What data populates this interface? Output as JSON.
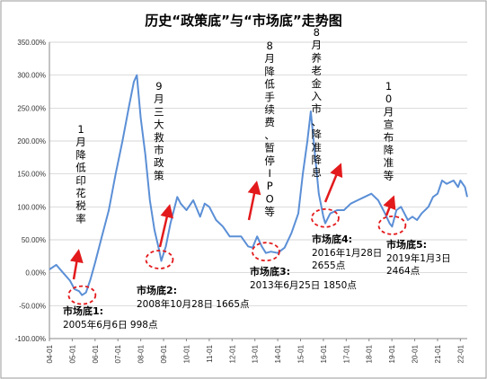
{
  "colors": {
    "line": "#5b8fd6",
    "annotation": "#e31a1c",
    "grid": "#c8c8c8",
    "frame": "#9a9a9a"
  },
  "chart_data": {
    "type": "line",
    "title": "历史“政策底”与“市场底”走势图",
    "xlabel": "",
    "ylabel": "",
    "ylim": [
      -100,
      350
    ],
    "yticks": [
      "-100.00%",
      "-50.00%",
      "0.00%",
      "50.00%",
      "100.00%",
      "150.00%",
      "200.00%",
      "250.00%",
      "300.00%",
      "350.00%"
    ],
    "xticks": [
      "04-01",
      "05-01",
      "06-01",
      "07-01",
      "08-01",
      "09-01",
      "10-01",
      "11-01",
      "12-01",
      "13-01",
      "14-01",
      "15-01",
      "16-01",
      "17-01",
      "18-01",
      "19-01",
      "20-01",
      "21-01",
      "22-01"
    ],
    "grid": "horizontal",
    "series": [
      {
        "x": [
          2004.0,
          2004.3,
          2004.6,
          2004.9,
          2005.1,
          2005.3,
          2005.43,
          2005.6,
          2005.8,
          2006.0,
          2006.3,
          2006.6,
          2006.9,
          2007.2,
          2007.5,
          2007.7,
          2007.83,
          2008.0,
          2008.2,
          2008.4,
          2008.6,
          2008.8,
          2008.9,
          2009.1,
          2009.3,
          2009.6,
          2009.75,
          2010.0,
          2010.3,
          2010.6,
          2010.8,
          2011.0,
          2011.3,
          2011.6,
          2011.9,
          2012.1,
          2012.4,
          2012.7,
          2012.9,
          2013.1,
          2013.3,
          2013.48,
          2013.7,
          2014.0,
          2014.3,
          2014.6,
          2014.9,
          2015.1,
          2015.3,
          2015.45,
          2015.6,
          2015.8,
          2016.0,
          2016.08,
          2016.3,
          2016.6,
          2016.9,
          2017.2,
          2017.5,
          2017.8,
          2018.1,
          2018.4,
          2018.7,
          2018.9,
          2019.01,
          2019.2,
          2019.4,
          2019.7,
          2019.9,
          2020.1,
          2020.3,
          2020.6,
          2020.8,
          2021.0,
          2021.2,
          2021.4,
          2021.7,
          2021.9,
          2022.0,
          2022.2,
          2022.3
        ],
        "values": [
          5,
          12,
          0,
          -12,
          -25,
          -28,
          -34,
          -30,
          -10,
          15,
          55,
          95,
          150,
          200,
          255,
          290,
          300,
          235,
          180,
          110,
          65,
          35,
          18,
          40,
          75,
          115,
          105,
          95,
          110,
          85,
          105,
          100,
          80,
          70,
          55,
          55,
          55,
          40,
          38,
          55,
          40,
          30,
          32,
          30,
          38,
          60,
          90,
          150,
          200,
          245,
          190,
          120,
          85,
          75,
          90,
          95,
          95,
          105,
          110,
          115,
          120,
          110,
          90,
          75,
          70,
          95,
          100,
          80,
          85,
          80,
          90,
          100,
          115,
          120,
          140,
          135,
          140,
          130,
          140,
          130,
          115
        ]
      }
    ]
  },
  "annotations": {
    "policy": [
      {
        "text": "1月降低印花税率",
        "x": 2005.3
      },
      {
        "text": "9月三大救市政策",
        "x": 2008.72
      },
      {
        "text": "8月降低手续费、暂停IPO等",
        "x": 2013.57
      },
      {
        "text": "8月养老金入市、降准降息",
        "x": 2015.62
      },
      {
        "text": "10月宣布降准等",
        "x": 2018.78
      }
    ],
    "market": [
      {
        "name": "市场底1:",
        "detail": "2005年6月6日 998点",
        "x": 2005.43,
        "y": -34
      },
      {
        "name": "市场底2:",
        "detail": "2008年10月28日 1665点",
        "x": 2008.82,
        "y": 20
      },
      {
        "name": "市场底3:",
        "detail": "2013年6月25日 1850点",
        "x": 2013.48,
        "y": 32
      },
      {
        "name": "市场底4:",
        "detail_line1": "2016年1月28日",
        "detail_line2": "2655点",
        "x": 2016.08,
        "y": 83
      },
      {
        "name": "市场底5:",
        "detail_line1": "2019年1月3日",
        "detail_line2": "2464点",
        "x": 2019.01,
        "y": 72
      }
    ]
  }
}
